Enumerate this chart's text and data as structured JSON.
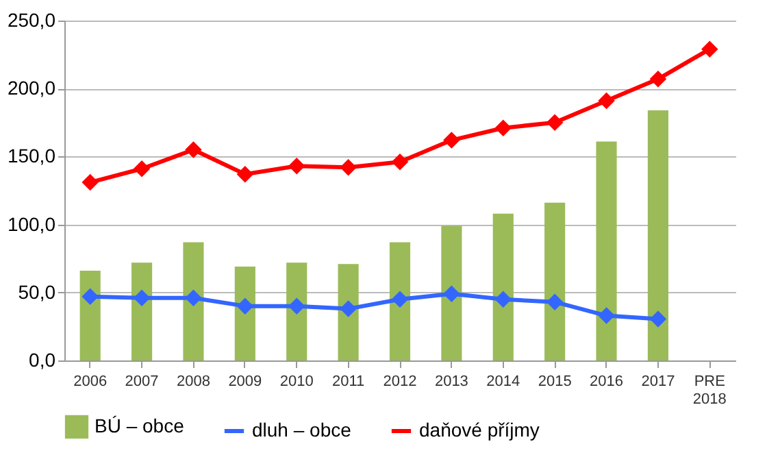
{
  "chart_data": {
    "type": "bar",
    "categories": [
      "2006",
      "2007",
      "2008",
      "2009",
      "2010",
      "2011",
      "2012",
      "2013",
      "2014",
      "2015",
      "2016",
      "2017",
      "PRE 2018"
    ],
    "series": [
      {
        "name": "BÚ – obce",
        "color": "#9bbb59",
        "values": [
          66,
          72,
          87,
          69,
          72,
          71,
          87,
          99,
          108,
          116,
          161,
          184,
          null
        ]
      },
      {
        "name": "dluh – obce",
        "type": "line",
        "color": "#3366ff",
        "values": [
          47,
          46,
          46,
          40,
          40,
          38,
          45,
          49,
          45,
          43,
          33,
          30.5,
          null
        ]
      },
      {
        "name": "daňové příjmy",
        "type": "line",
        "color": "#ff0000",
        "values": [
          131,
          141,
          155,
          137,
          143,
          142,
          146,
          162,
          171,
          175,
          191,
          207,
          229
        ]
      }
    ],
    "ylim": [
      0,
      250
    ],
    "yticks": [
      {
        "value": 0,
        "label": "0,0"
      },
      {
        "value": 50,
        "label": "50,0"
      },
      {
        "value": 100,
        "label": "100,0"
      },
      {
        "value": 150,
        "label": "150,0"
      },
      {
        "value": 200,
        "label": "200,0"
      },
      {
        "value": 250,
        "label": "250,0"
      }
    ],
    "grid": "y",
    "legend": "bottom",
    "marker": "diamond",
    "line_style": "solid"
  }
}
